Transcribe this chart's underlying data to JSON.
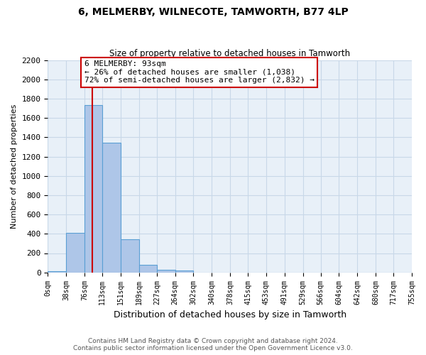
{
  "title": "6, MELMERBY, WILNECOTE, TAMWORTH, B77 4LP",
  "subtitle": "Size of property relative to detached houses in Tamworth",
  "xlabel": "Distribution of detached houses by size in Tamworth",
  "ylabel": "Number of detached properties",
  "bin_labels": [
    "0sqm",
    "38sqm",
    "76sqm",
    "113sqm",
    "151sqm",
    "189sqm",
    "227sqm",
    "264sqm",
    "302sqm",
    "340sqm",
    "378sqm",
    "415sqm",
    "453sqm",
    "491sqm",
    "529sqm",
    "566sqm",
    "604sqm",
    "642sqm",
    "680sqm",
    "717sqm",
    "755sqm"
  ],
  "bin_edges": [
    0,
    38,
    76,
    113,
    151,
    189,
    227,
    264,
    302,
    340,
    378,
    415,
    453,
    491,
    529,
    566,
    604,
    642,
    680,
    717,
    755
  ],
  "bar_heights": [
    10,
    410,
    1730,
    1340,
    340,
    80,
    25,
    20,
    0,
    0,
    0,
    0,
    0,
    0,
    0,
    0,
    0,
    0,
    0,
    0
  ],
  "bar_color": "#aec6e8",
  "bar_edgecolor": "#5a9fd4",
  "ylim": [
    0,
    2200
  ],
  "yticks": [
    0,
    200,
    400,
    600,
    800,
    1000,
    1200,
    1400,
    1600,
    1800,
    2000,
    2200
  ],
  "red_line_x": 93,
  "annotation_line1": "6 MELMERBY: 93sqm",
  "annotation_line2": "← 26% of detached houses are smaller (1,038)",
  "annotation_line3": "72% of semi-detached houses are larger (2,832) →",
  "annotation_box_color": "#ffffff",
  "annotation_box_edgecolor": "#cc0000",
  "footer_line1": "Contains HM Land Registry data © Crown copyright and database right 2024.",
  "footer_line2": "Contains public sector information licensed under the Open Government Licence v3.0.",
  "grid_color": "#c8d8e8",
  "background_color": "#e8f0f8"
}
